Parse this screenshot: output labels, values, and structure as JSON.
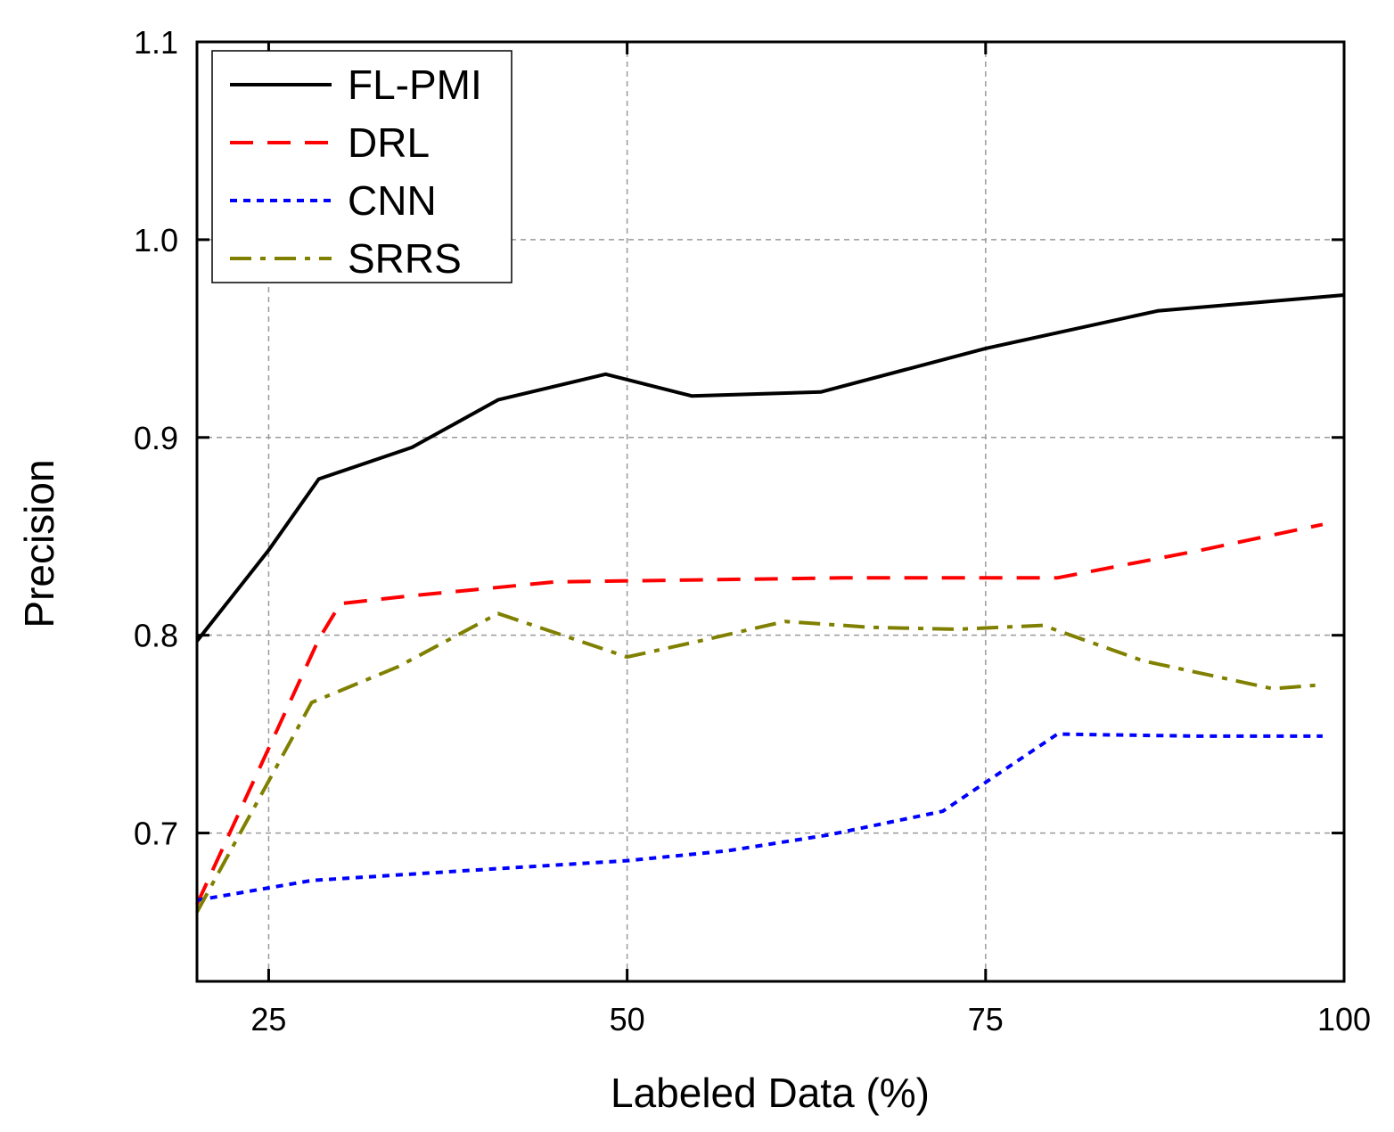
{
  "chart_data": {
    "type": "line",
    "title": "",
    "xlabel": "Labeled Data (%)",
    "ylabel": "Precision",
    "xlim": [
      20,
      100
    ],
    "ylim": [
      0.625,
      1.1
    ],
    "xticks": [
      25,
      50,
      75,
      100
    ],
    "xtick_labels": [
      "25",
      "50",
      "75",
      "100"
    ],
    "yticks": [
      0.7,
      0.8,
      0.9,
      1.0,
      1.1
    ],
    "ytick_labels": [
      "0.7",
      "0.8",
      "0.9",
      "1.0",
      "1.1"
    ],
    "grid": true,
    "legend_position": "top-left",
    "series": [
      {
        "name": "FL-PMI",
        "color": "#000000",
        "style": "solid",
        "x": [
          20,
          25,
          28.5,
          35,
          41,
          48.5,
          54.5,
          63.5,
          75,
          87,
          100
        ],
        "y": [
          0.797,
          0.843,
          0.879,
          0.895,
          0.919,
          0.932,
          0.921,
          0.923,
          0.945,
          0.964,
          0.972
        ]
      },
      {
        "name": "DRL",
        "color": "#ff0000",
        "style": "dashed",
        "x": [
          20,
          28.5,
          30,
          35,
          45,
          55,
          65,
          75,
          80,
          90,
          98.5
        ],
        "y": [
          0.664,
          0.798,
          0.816,
          0.82,
          0.827,
          0.828,
          0.829,
          0.829,
          0.829,
          0.843,
          0.856
        ]
      },
      {
        "name": "CNN",
        "color": "#0000ff",
        "style": "dotted",
        "x": [
          20,
          28,
          41,
          50,
          57,
          64,
          72,
          80,
          90,
          98.5
        ],
        "y": [
          0.666,
          0.676,
          0.682,
          0.686,
          0.691,
          0.699,
          0.711,
          0.75,
          0.749,
          0.749
        ]
      },
      {
        "name": "SRRS",
        "color": "#808000",
        "style": "dashdot",
        "x": [
          20,
          28,
          34,
          41,
          50,
          55,
          61,
          67,
          73,
          79,
          86,
          95,
          98.5
        ],
        "y": [
          0.66,
          0.766,
          0.784,
          0.811,
          0.789,
          0.797,
          0.807,
          0.804,
          0.803,
          0.805,
          0.787,
          0.773,
          0.775
        ]
      }
    ]
  }
}
